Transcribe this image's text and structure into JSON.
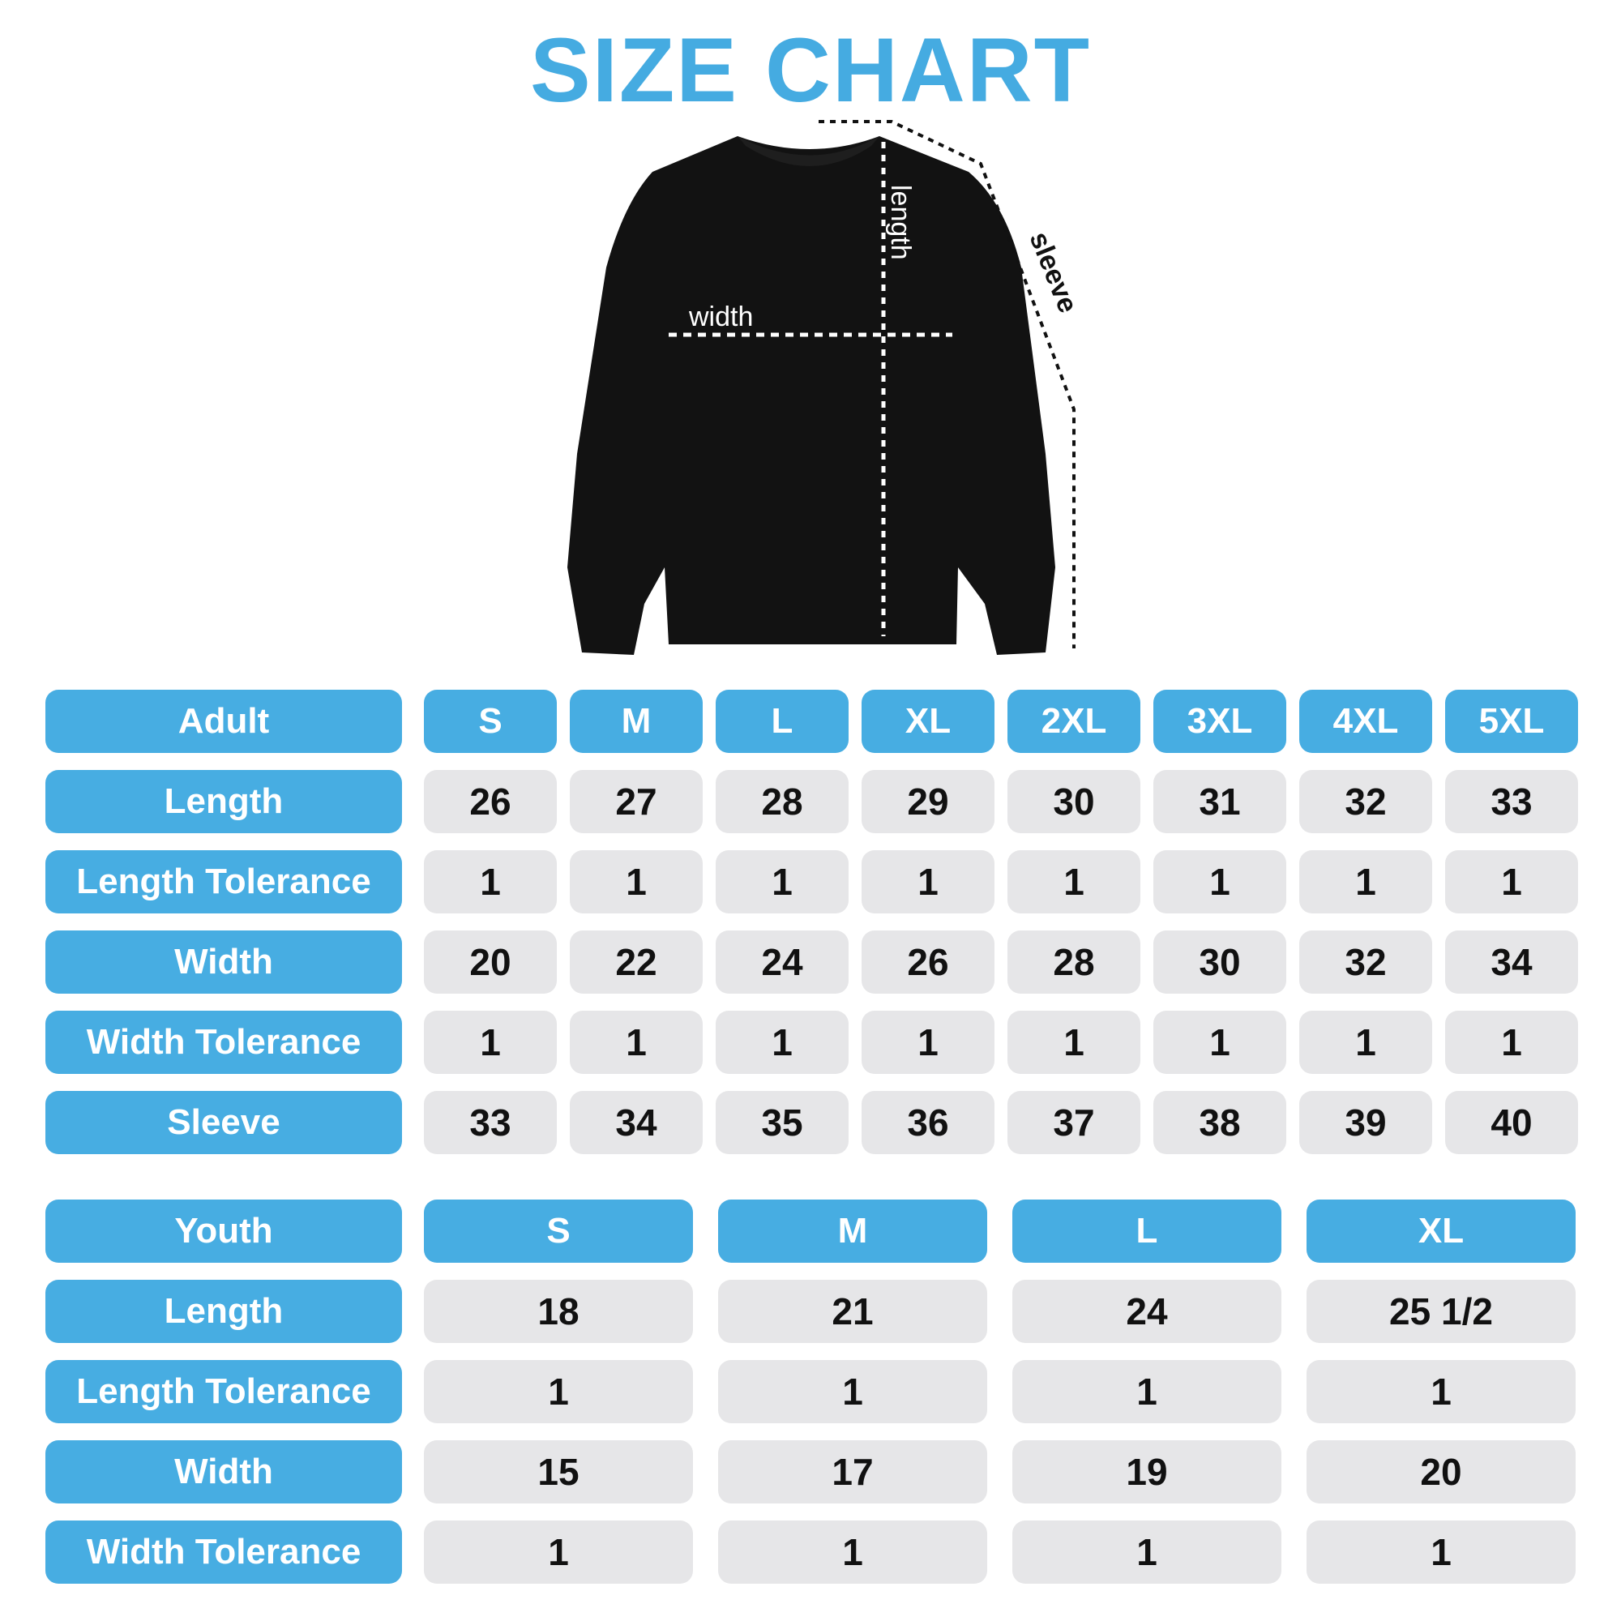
{
  "title": "SIZE CHART",
  "diagram_labels": {
    "width": "width",
    "length": "length",
    "sleeve": "sleeve"
  },
  "colors": {
    "accent": "#47ade2",
    "cell": "#e6e6e8",
    "garment": "#111111"
  },
  "adult": {
    "header": "Adult",
    "sizes": [
      "S",
      "M",
      "L",
      "XL",
      "2XL",
      "3XL",
      "4XL",
      "5XL"
    ],
    "rows": [
      {
        "label": "Length",
        "values": [
          "26",
          "27",
          "28",
          "29",
          "30",
          "31",
          "32",
          "33"
        ]
      },
      {
        "label": "Length Tolerance",
        "values": [
          "1",
          "1",
          "1",
          "1",
          "1",
          "1",
          "1",
          "1"
        ]
      },
      {
        "label": "Width",
        "values": [
          "20",
          "22",
          "24",
          "26",
          "28",
          "30",
          "32",
          "34"
        ]
      },
      {
        "label": "Width Tolerance",
        "values": [
          "1",
          "1",
          "1",
          "1",
          "1",
          "1",
          "1",
          "1"
        ]
      },
      {
        "label": "Sleeve",
        "values": [
          "33",
          "34",
          "35",
          "36",
          "37",
          "38",
          "39",
          "40"
        ]
      }
    ]
  },
  "youth": {
    "header": "Youth",
    "sizes": [
      "S",
      "M",
      "L",
      "XL"
    ],
    "rows": [
      {
        "label": "Length",
        "values": [
          "18",
          "21",
          "24",
          "25 1/2"
        ]
      },
      {
        "label": "Length Tolerance",
        "values": [
          "1",
          "1",
          "1",
          "1"
        ]
      },
      {
        "label": "Width",
        "values": [
          "15",
          "17",
          "19",
          "20"
        ]
      },
      {
        "label": "Width Tolerance",
        "values": [
          "1",
          "1",
          "1",
          "1"
        ]
      }
    ]
  }
}
